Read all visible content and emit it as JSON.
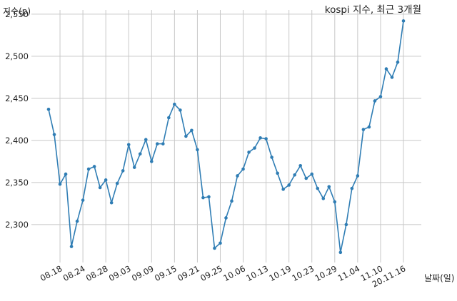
{
  "chart_data": {
    "type": "line",
    "title": "kospi 지수, 최근 3개월",
    "xlabel": "날짜(일)",
    "ylabel": "지수(p)",
    "x_tick_labels": [
      "08.18",
      "08.24",
      "08.28",
      "09.03",
      "09.09",
      "09.15",
      "09.21",
      "09.25",
      "10.06",
      "10.13",
      "10.19",
      "10.23",
      "10.29",
      "11.04",
      "11.10",
      "20.11.16"
    ],
    "x_tick_indices": [
      2,
      6,
      10,
      14,
      18,
      22,
      26,
      30,
      34,
      38,
      42,
      46,
      50,
      54,
      58,
      62
    ],
    "ylim": [
      2255,
      2555
    ],
    "y_ticks": [
      2300,
      2350,
      2400,
      2450,
      2500,
      2550
    ],
    "y_tick_labels": [
      "2,300",
      "2,350",
      "2,400",
      "2,450",
      "2,500",
      "2,550"
    ],
    "grid": true,
    "series": [
      {
        "color": "#2f7db4",
        "values": [
          2437,
          2407,
          2348,
          2360,
          2274,
          2304,
          2329,
          2366,
          2369,
          2344,
          2353,
          2326,
          2349,
          2364,
          2395,
          2368,
          2384,
          2401,
          2375,
          2396,
          2396,
          2427,
          2443,
          2436,
          2405,
          2412,
          2389,
          2332,
          2333,
          2272,
          2278,
          2308,
          2328,
          2358,
          2366,
          2386,
          2391,
          2403,
          2402,
          2380,
          2361,
          2342,
          2347,
          2359,
          2370,
          2355,
          2360,
          2343,
          2331,
          2345,
          2327,
          2267,
          2300,
          2343,
          2358,
          2413,
          2416,
          2447,
          2452,
          2485,
          2475,
          2493,
          2542
        ]
      }
    ]
  }
}
